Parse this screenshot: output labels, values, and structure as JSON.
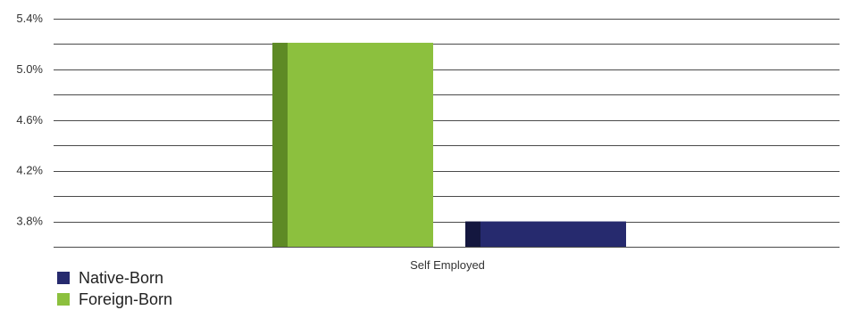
{
  "chart_data": {
    "type": "bar",
    "categories": [
      "Self Employed"
    ],
    "series": [
      {
        "name": "Foreign-Born",
        "values": [
          5.21
        ],
        "color": "#8CC03E",
        "side_color": "#5E8A25"
      },
      {
        "name": "Native-Born",
        "values": [
          3.8
        ],
        "color": "#262A6E",
        "side_color": "#14173F"
      }
    ],
    "ylim": [
      3.6,
      5.4
    ],
    "yticks": [
      5.4,
      5.0,
      4.6,
      4.2,
      3.8
    ],
    "ytick_labels": [
      "5.4%",
      "5.0%",
      "4.6%",
      "4.2%",
      "3.8%"
    ],
    "grid": true,
    "legend_position": "bottom-left",
    "legend": [
      {
        "label": "Native-Born",
        "color": "#262A6E"
      },
      {
        "label": "Foreign-Born",
        "color": "#8CC03E"
      }
    ]
  }
}
